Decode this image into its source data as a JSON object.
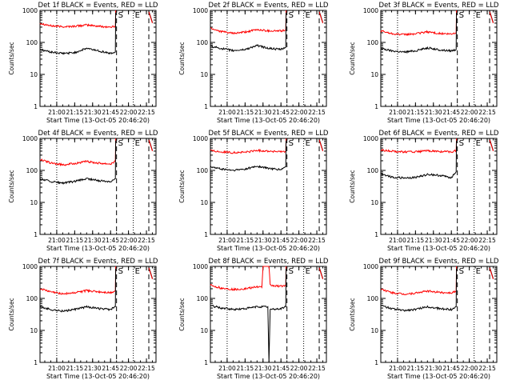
{
  "figure": {
    "xlabel": "Start Time (13-Oct-05 20:46:20)",
    "ylabel": "Counts/sec",
    "marker_labels": [
      "S",
      "E"
    ]
  },
  "chart_data": [
    {
      "type": "line",
      "title": "Det 1f BLACK = Events, RED = LLD",
      "xlabel": "Start Time (13-Oct-05 20:46:20)",
      "ylabel": "Counts/sec",
      "x_ticks": [
        "21:00",
        "21:15",
        "21:30",
        "21:45",
        "22:00",
        "22:15"
      ],
      "y_ticks": [
        "1",
        "10",
        "100",
        "1000"
      ],
      "ylim": [
        1,
        1000
      ],
      "y_scale": "log",
      "series": [
        {
          "color": "#ff0000",
          "x": [
            "20:46",
            "20:55",
            "21:05",
            "21:15",
            "21:25",
            "21:35",
            "21:45",
            "21:49"
          ],
          "y": [
            400,
            330,
            310,
            320,
            350,
            320,
            300,
            320
          ]
        },
        {
          "color": "#000000",
          "x": [
            "20:46",
            "20:55",
            "21:05",
            "21:15",
            "21:25",
            "21:35",
            "21:45",
            "21:49"
          ],
          "y": [
            60,
            50,
            45,
            48,
            65,
            55,
            45,
            50
          ]
        }
      ],
      "post_x": [
        "22:17",
        "22:20"
      ],
      "post_red": [
        900,
        400
      ],
      "post_black": [
        950,
        420
      ]
    },
    {
      "type": "line",
      "title": "Det 2f BLACK = Events, RED = LLD",
      "xlabel": "Start Time (13-Oct-05 20:46:20)",
      "ylabel": "Counts/sec",
      "x_ticks": [
        "21:00",
        "21:15",
        "21:30",
        "21:45",
        "22:00",
        "22:15"
      ],
      "y_ticks": [
        "1",
        "10",
        "100",
        "1000"
      ],
      "ylim": [
        1,
        1000
      ],
      "y_scale": "log",
      "series": [
        {
          "color": "#ff0000",
          "x": [
            "20:46",
            "20:55",
            "21:05",
            "21:15",
            "21:25",
            "21:35",
            "21:45",
            "21:49"
          ],
          "y": [
            280,
            220,
            190,
            210,
            250,
            230,
            230,
            240
          ]
        },
        {
          "color": "#000000",
          "x": [
            "20:46",
            "20:55",
            "21:05",
            "21:15",
            "21:25",
            "21:35",
            "21:45",
            "21:49"
          ],
          "y": [
            75,
            65,
            55,
            60,
            80,
            65,
            60,
            70
          ]
        }
      ],
      "post_x": [
        "22:17",
        "22:20"
      ],
      "post_red": [
        900,
        400
      ],
      "post_black": [
        950,
        420
      ]
    },
    {
      "type": "line",
      "title": "Det 3f BLACK = Events, RED = LLD",
      "xlabel": "Start Time (13-Oct-05 20:46:20)",
      "ylabel": "Counts/sec",
      "x_ticks": [
        "21:00",
        "21:15",
        "21:30",
        "21:45",
        "22:00",
        "22:15"
      ],
      "y_ticks": [
        "1",
        "10",
        "100",
        "1000"
      ],
      "ylim": [
        1,
        1000
      ],
      "y_scale": "log",
      "series": [
        {
          "color": "#ff0000",
          "x": [
            "20:46",
            "20:55",
            "21:05",
            "21:15",
            "21:25",
            "21:35",
            "21:45",
            "21:49"
          ],
          "y": [
            230,
            190,
            175,
            185,
            215,
            190,
            180,
            200
          ]
        },
        {
          "color": "#000000",
          "x": [
            "20:46",
            "20:55",
            "21:05",
            "21:15",
            "21:25",
            "21:35",
            "21:45",
            "21:49"
          ],
          "y": [
            65,
            55,
            50,
            55,
            68,
            58,
            55,
            60
          ]
        }
      ],
      "post_x": [
        "22:17",
        "22:20"
      ],
      "post_red": [
        900,
        400
      ],
      "post_black": [
        950,
        420
      ]
    },
    {
      "type": "line",
      "title": "Det 4f BLACK = Events, RED = LLD",
      "xlabel": "Start Time (13-Oct-05 20:46:20)",
      "ylabel": "Counts/sec",
      "x_ticks": [
        "21:00",
        "21:15",
        "21:30",
        "21:45",
        "22:00",
        "22:15"
      ],
      "y_ticks": [
        "1",
        "10",
        "100",
        "1000"
      ],
      "ylim": [
        1,
        1000
      ],
      "y_scale": "log",
      "series": [
        {
          "color": "#ff0000",
          "x": [
            "20:46",
            "20:55",
            "21:05",
            "21:15",
            "21:25",
            "21:35",
            "21:45",
            "21:49"
          ],
          "y": [
            220,
            170,
            150,
            165,
            190,
            170,
            160,
            190
          ]
        },
        {
          "color": "#000000",
          "x": [
            "20:46",
            "20:55",
            "21:05",
            "21:15",
            "21:25",
            "21:35",
            "21:45",
            "21:49"
          ],
          "y": [
            55,
            45,
            40,
            45,
            55,
            48,
            45,
            55
          ]
        }
      ],
      "post_x": [
        "22:17",
        "22:20"
      ],
      "post_red": [
        900,
        400
      ],
      "post_black": [
        950,
        420
      ]
    },
    {
      "type": "line",
      "title": "Det 5f BLACK = Events, RED = LLD",
      "xlabel": "Start Time (13-Oct-05 20:46:20)",
      "ylabel": "Counts/sec",
      "x_ticks": [
        "21:00",
        "21:15",
        "21:30",
        "21:45",
        "22:00",
        "22:15"
      ],
      "y_ticks": [
        "1",
        "10",
        "100",
        "1000"
      ],
      "ylim": [
        1,
        1000
      ],
      "y_scale": "log",
      "series": [
        {
          "color": "#ff0000",
          "x": [
            "20:46",
            "20:55",
            "21:05",
            "21:15",
            "21:25",
            "21:35",
            "21:45",
            "21:49"
          ],
          "y": [
            420,
            380,
            360,
            370,
            420,
            400,
            380,
            400
          ]
        },
        {
          "color": "#000000",
          "x": [
            "20:46",
            "20:55",
            "21:05",
            "21:15",
            "21:25",
            "21:35",
            "21:45",
            "21:49"
          ],
          "y": [
            130,
            110,
            100,
            110,
            135,
            115,
            105,
            130
          ]
        }
      ],
      "post_x": [
        "22:17",
        "22:20"
      ],
      "post_red": [
        900,
        400
      ],
      "post_black": [
        950,
        420
      ]
    },
    {
      "type": "line",
      "title": "Det 6f BLACK = Events, RED = LLD",
      "xlabel": "Start Time (13-Oct-05 20:46:20)",
      "ylabel": "Counts/sec",
      "x_ticks": [
        "21:00",
        "21:15",
        "21:30",
        "21:45",
        "22:00",
        "22:15"
      ],
      "y_ticks": [
        "1",
        "10",
        "100",
        "1000"
      ],
      "ylim": [
        1,
        1000
      ],
      "y_scale": "log",
      "series": [
        {
          "color": "#ff0000",
          "x": [
            "20:46",
            "20:55",
            "21:05",
            "21:15",
            "21:25",
            "21:35",
            "21:45",
            "21:49"
          ],
          "y": [
            430,
            400,
            380,
            380,
            410,
            390,
            380,
            420
          ]
        },
        {
          "color": "#000000",
          "x": [
            "20:46",
            "20:55",
            "21:05",
            "21:15",
            "21:25",
            "21:35",
            "21:45",
            "21:49"
          ],
          "y": [
            80,
            62,
            58,
            60,
            75,
            70,
            60,
            90
          ]
        }
      ],
      "post_x": [
        "22:17",
        "22:20"
      ],
      "post_red": [
        900,
        400
      ],
      "post_black": [
        950,
        420
      ]
    },
    {
      "type": "line",
      "title": "Det 7f BLACK = Events, RED = LLD",
      "xlabel": "Start Time (13-Oct-05 20:46:20)",
      "ylabel": "Counts/sec",
      "x_ticks": [
        "21:00",
        "21:15",
        "21:30",
        "21:45",
        "22:00",
        "22:15"
      ],
      "y_ticks": [
        "1",
        "10",
        "100",
        "1000"
      ],
      "ylim": [
        1,
        1000
      ],
      "y_scale": "log",
      "series": [
        {
          "color": "#ff0000",
          "x": [
            "20:46",
            "20:55",
            "21:05",
            "21:15",
            "21:25",
            "21:35",
            "21:45",
            "21:49"
          ],
          "y": [
            200,
            160,
            140,
            150,
            175,
            160,
            150,
            170
          ]
        },
        {
          "color": "#000000",
          "x": [
            "20:46",
            "20:55",
            "21:05",
            "21:15",
            "21:25",
            "21:35",
            "21:45",
            "21:49"
          ],
          "y": [
            55,
            45,
            40,
            45,
            55,
            48,
            45,
            55
          ]
        }
      ],
      "post_x": [
        "22:17",
        "22:20"
      ],
      "post_red": [
        900,
        400
      ],
      "post_black": [
        950,
        420
      ]
    },
    {
      "type": "line",
      "title": "Det 8f BLACK = Events, RED = LLD",
      "xlabel": "Start Time (13-Oct-05 20:46:20)",
      "ylabel": "Counts/sec",
      "x_ticks": [
        "21:00",
        "21:15",
        "21:30",
        "21:45",
        "22:00",
        "22:15"
      ],
      "y_ticks": [
        "1",
        "10",
        "100",
        "1000"
      ],
      "ylim": [
        1,
        1000
      ],
      "y_scale": "log",
      "series": [
        {
          "color": "#ff0000",
          "x": [
            "20:46",
            "20:55",
            "21:05",
            "21:15",
            "21:25",
            "21:29",
            "21:30",
            "21:35",
            "21:36",
            "21:38",
            "21:45",
            "21:49"
          ],
          "y": [
            260,
            210,
            190,
            200,
            230,
            220,
            1000,
            1000,
            260,
            250,
            240,
            260
          ]
        },
        {
          "color": "#000000",
          "x": [
            "20:46",
            "20:55",
            "21:05",
            "21:15",
            "21:25",
            "21:30",
            "21:34",
            "21:35",
            "21:36",
            "21:45",
            "21:49"
          ],
          "y": [
            60,
            50,
            45,
            48,
            55,
            55,
            55,
            1,
            45,
            48,
            55
          ]
        }
      ],
      "post_x": [
        "22:17",
        "22:20"
      ],
      "post_red": [
        900,
        400
      ],
      "post_black": [
        950,
        420
      ]
    },
    {
      "type": "line",
      "title": "Det 9f BLACK = Events, RED = LLD",
      "xlabel": "Start Time (13-Oct-05 20:46:20)",
      "ylabel": "Counts/sec",
      "x_ticks": [
        "21:00",
        "21:15",
        "21:30",
        "21:45",
        "22:00",
        "22:15"
      ],
      "y_ticks": [
        "1",
        "10",
        "100",
        "1000"
      ],
      "ylim": [
        1,
        1000
      ],
      "y_scale": "log",
      "series": [
        {
          "color": "#ff0000",
          "x": [
            "20:46",
            "20:55",
            "21:05",
            "21:15",
            "21:25",
            "21:35",
            "21:45",
            "21:49"
          ],
          "y": [
            200,
            150,
            135,
            145,
            170,
            155,
            150,
            170
          ]
        },
        {
          "color": "#000000",
          "x": [
            "20:46",
            "20:55",
            "21:05",
            "21:15",
            "21:25",
            "21:35",
            "21:45",
            "21:49"
          ],
          "y": [
            60,
            48,
            42,
            45,
            55,
            48,
            45,
            55
          ]
        }
      ],
      "post_x": [
        "22:17",
        "22:20"
      ],
      "post_red": [
        900,
        400
      ],
      "post_black": [
        950,
        420
      ]
    }
  ]
}
